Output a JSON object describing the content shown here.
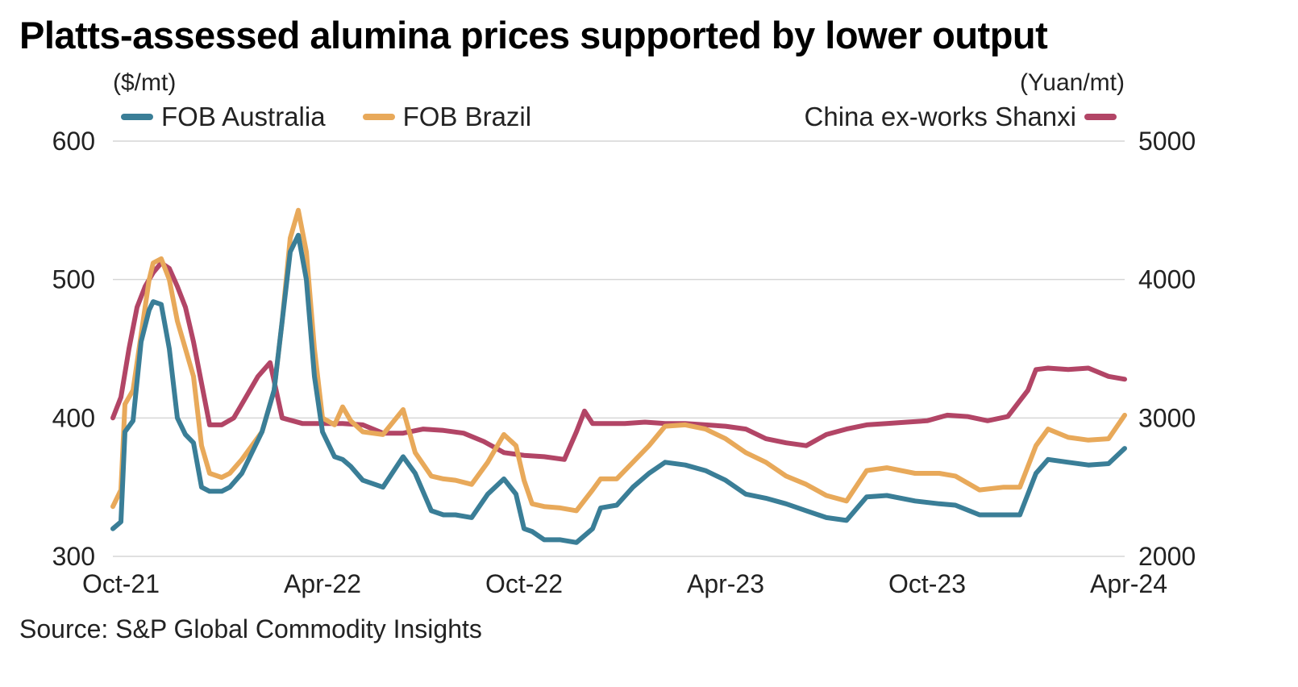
{
  "title": "Platts-assessed alumina prices supported by lower output",
  "source": "Source: S&P Global Commodity Insights",
  "chart_data": {
    "type": "line",
    "title": "Platts-assessed alumina prices supported by lower output",
    "left_axis": {
      "unit": "($/mt)",
      "ylim": [
        300,
        600
      ],
      "ticks": [
        "600",
        "500",
        "400",
        "300"
      ],
      "tick_values": [
        600,
        500,
        400,
        300
      ]
    },
    "right_axis": {
      "unit": "(Yuan/mt)",
      "ylim": [
        2000,
        5000
      ],
      "ticks": [
        "5000",
        "4000",
        "3000",
        "2000"
      ],
      "tick_values": [
        5000,
        4000,
        3000,
        2000
      ]
    },
    "x_ticks": [
      "Oct-21",
      "Apr-22",
      "Oct-22",
      "Apr-23",
      "Oct-23",
      "Apr-24"
    ],
    "x_tick_values": [
      2021.75,
      2022.25,
      2022.75,
      2023.25,
      2023.75,
      2024.25
    ],
    "x_range": [
      2021.73,
      2024.24
    ],
    "grid": true,
    "series": [
      {
        "name": "FOB Australia",
        "axis": "left",
        "color": "#3a7e97",
        "x": [
          2021.73,
          2021.75,
          2021.76,
          2021.78,
          2021.8,
          2021.82,
          2021.83,
          2021.85,
          2021.87,
          2021.89,
          2021.91,
          2021.93,
          2021.95,
          2021.97,
          2022.0,
          2022.02,
          2022.05,
          2022.1,
          2022.13,
          2022.15,
          2022.17,
          2022.19,
          2022.21,
          2022.23,
          2022.25,
          2022.28,
          2022.3,
          2022.32,
          2022.35,
          2022.4,
          2022.45,
          2022.48,
          2022.52,
          2022.55,
          2022.58,
          2022.62,
          2022.66,
          2022.7,
          2022.73,
          2022.75,
          2022.77,
          2022.8,
          2022.84,
          2022.88,
          2022.92,
          2022.94,
          2022.98,
          2023.02,
          2023.06,
          2023.1,
          2023.15,
          2023.2,
          2023.25,
          2023.3,
          2023.35,
          2023.4,
          2023.45,
          2023.5,
          2023.55,
          2023.6,
          2023.65,
          2023.72,
          2023.78,
          2023.82,
          2023.88,
          2023.94,
          2023.98,
          2024.02,
          2024.05,
          2024.1,
          2024.15,
          2024.2,
          2024.24
        ],
        "values": [
          320,
          325,
          390,
          398,
          455,
          478,
          484,
          482,
          450,
          400,
          388,
          382,
          350,
          347,
          347,
          350,
          360,
          390,
          420,
          470,
          520,
          532,
          500,
          430,
          390,
          372,
          370,
          365,
          355,
          350,
          372,
          360,
          333,
          330,
          330,
          328,
          345,
          356,
          345,
          320,
          318,
          312,
          312,
          310,
          320,
          335,
          337,
          350,
          360,
          368,
          366,
          362,
          355,
          345,
          342,
          338,
          333,
          328,
          326,
          343,
          344,
          340,
          338,
          337,
          330,
          330,
          330,
          360,
          370,
          368,
          366,
          367,
          378
        ]
      },
      {
        "name": "FOB Brazil",
        "axis": "left",
        "color": "#e8a95a",
        "x": [
          2021.73,
          2021.75,
          2021.76,
          2021.78,
          2021.8,
          2021.82,
          2021.83,
          2021.85,
          2021.87,
          2021.89,
          2021.91,
          2021.93,
          2021.95,
          2021.97,
          2022.0,
          2022.02,
          2022.05,
          2022.1,
          2022.13,
          2022.15,
          2022.17,
          2022.19,
          2022.21,
          2022.23,
          2022.25,
          2022.28,
          2022.3,
          2022.32,
          2022.35,
          2022.4,
          2022.45,
          2022.48,
          2022.52,
          2022.55,
          2022.58,
          2022.62,
          2022.66,
          2022.7,
          2022.73,
          2022.75,
          2022.77,
          2022.8,
          2022.84,
          2022.88,
          2022.92,
          2022.94,
          2022.98,
          2023.02,
          2023.06,
          2023.1,
          2023.15,
          2023.2,
          2023.25,
          2023.3,
          2023.35,
          2023.4,
          2023.45,
          2023.5,
          2023.55,
          2023.6,
          2023.65,
          2023.72,
          2023.78,
          2023.82,
          2023.88,
          2023.94,
          2023.98,
          2024.02,
          2024.05,
          2024.1,
          2024.15,
          2024.2,
          2024.24
        ],
        "values": [
          336,
          348,
          410,
          420,
          460,
          500,
          512,
          515,
          500,
          470,
          450,
          430,
          380,
          360,
          357,
          360,
          370,
          390,
          420,
          470,
          530,
          550,
          520,
          450,
          400,
          395,
          408,
          398,
          390,
          388,
          406,
          375,
          358,
          356,
          355,
          352,
          368,
          388,
          380,
          355,
          338,
          336,
          335,
          333,
          348,
          356,
          356,
          368,
          380,
          394,
          395,
          392,
          385,
          375,
          368,
          358,
          352,
          344,
          340,
          362,
          364,
          360,
          360,
          358,
          348,
          350,
          350,
          380,
          392,
          386,
          384,
          385,
          402
        ]
      },
      {
        "name": "China ex-works Shanxi",
        "axis": "right",
        "color": "#b24566",
        "x": [
          2021.73,
          2021.75,
          2021.77,
          2021.79,
          2021.81,
          2021.83,
          2021.85,
          2021.87,
          2021.89,
          2021.91,
          2021.93,
          2021.95,
          2021.97,
          2022.0,
          2022.03,
          2022.06,
          2022.09,
          2022.12,
          2022.15,
          2022.2,
          2022.25,
          2022.3,
          2022.35,
          2022.4,
          2022.45,
          2022.5,
          2022.55,
          2022.6,
          2022.65,
          2022.7,
          2022.75,
          2022.8,
          2022.85,
          2022.88,
          2022.9,
          2022.92,
          2022.95,
          2023.0,
          2023.05,
          2023.1,
          2023.15,
          2023.2,
          2023.25,
          2023.3,
          2023.35,
          2023.4,
          2023.45,
          2023.5,
          2023.55,
          2023.6,
          2023.65,
          2023.7,
          2023.75,
          2023.8,
          2023.85,
          2023.9,
          2023.95,
          2024.0,
          2024.02,
          2024.05,
          2024.1,
          2024.15,
          2024.2,
          2024.24
        ],
        "values": [
          3000,
          3150,
          3500,
          3800,
          3950,
          4050,
          4120,
          4080,
          3950,
          3800,
          3550,
          3250,
          2950,
          2950,
          3000,
          3150,
          3300,
          3400,
          3000,
          2960,
          2960,
          2960,
          2950,
          2890,
          2890,
          2920,
          2910,
          2890,
          2830,
          2750,
          2730,
          2720,
          2700,
          2900,
          3050,
          2960,
          2960,
          2960,
          2970,
          2960,
          2960,
          2950,
          2940,
          2920,
          2850,
          2820,
          2800,
          2880,
          2920,
          2950,
          2960,
          2970,
          2980,
          3020,
          3010,
          2980,
          3010,
          3200,
          3350,
          3360,
          3350,
          3360,
          3300,
          3280
        ]
      }
    ]
  }
}
